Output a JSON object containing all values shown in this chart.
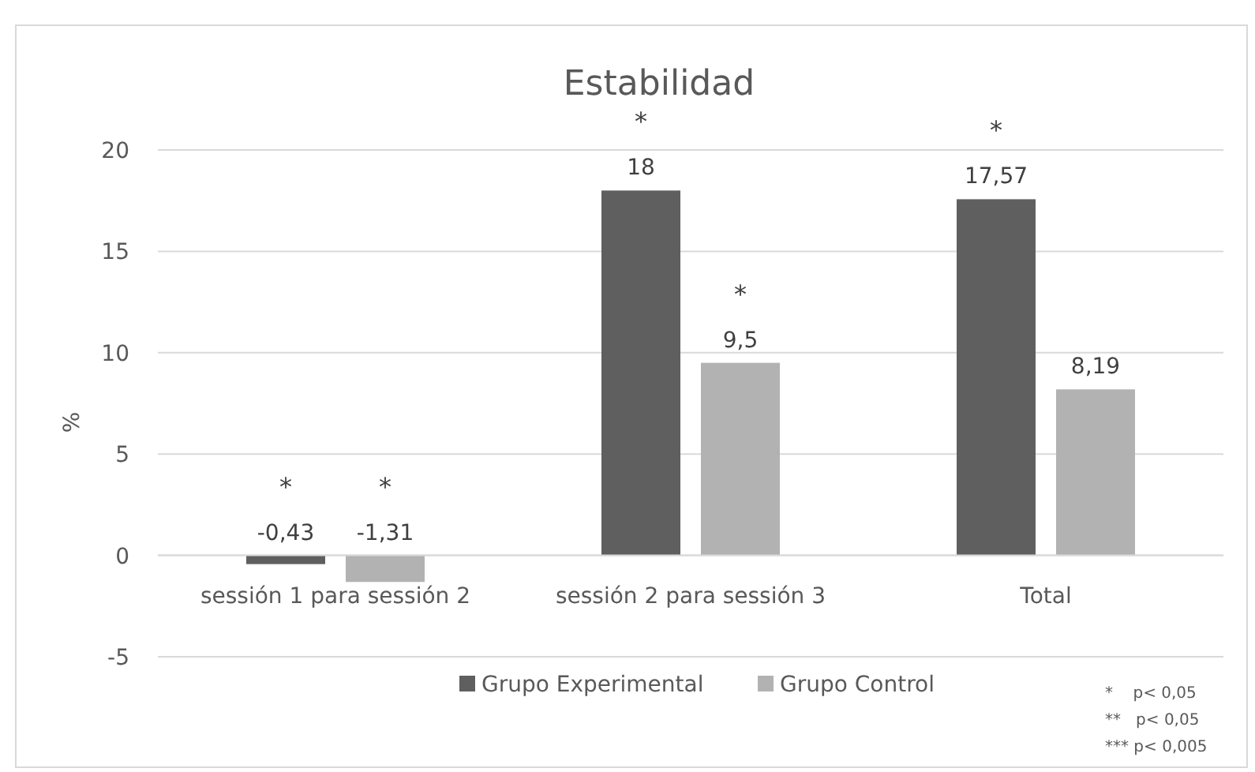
{
  "chart_data": {
    "type": "bar",
    "title": "Estabilidad",
    "ylabel": "%",
    "categories": [
      "sessión 1 para sessión 2",
      "sessión 2 para sessión 3",
      "Total"
    ],
    "series": [
      {
        "name": "Grupo Experimental",
        "color": "#5f5f5f",
        "values": [
          -0.43,
          18,
          17.57
        ],
        "value_labels": [
          "-0,43",
          "18",
          "17,57"
        ]
      },
      {
        "name": "Grupo Control",
        "color": "#b2b2b2",
        "values": [
          -1.31,
          9.5,
          8.19
        ],
        "value_labels": [
          "-1,31",
          "9,5",
          "8,19"
        ]
      }
    ],
    "ylim": [
      -5,
      20
    ],
    "yticks": [
      -5,
      0,
      5,
      10,
      15,
      20
    ],
    "grid": "y",
    "legend": "bottom",
    "annotations": [
      "*",
      "*",
      "*",
      "*",
      "*",
      "*    p< 0,05",
      "**   p< 0,05",
      "*** p< 0,005"
    ]
  }
}
